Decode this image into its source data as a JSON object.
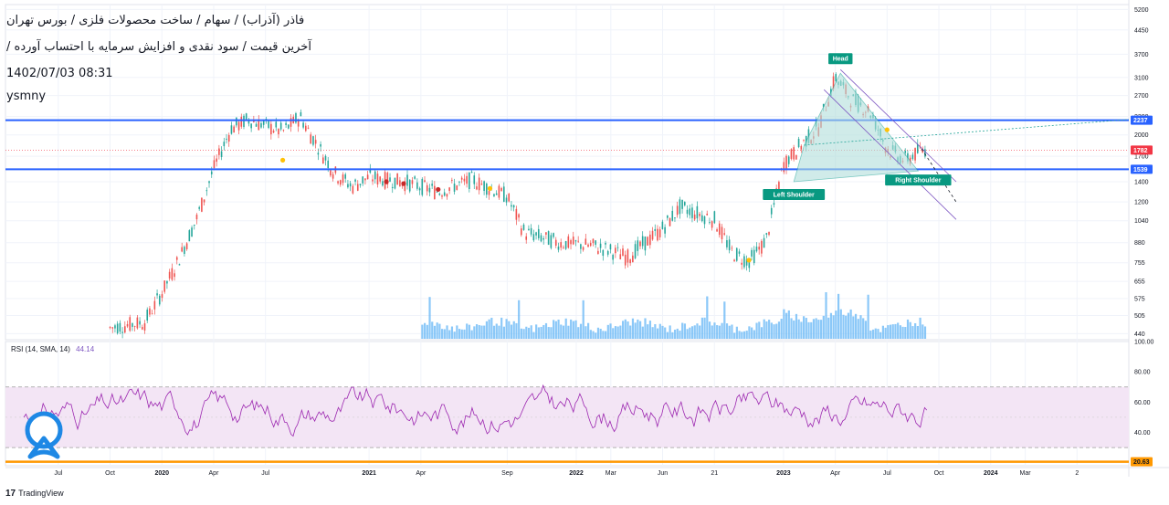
{
  "header": {
    "line1": "فاذر (آذراب) / سهام / ساخت محصولات فلزی / بورس تهران",
    "line2": "آخرین قیمت / سود نقدی و افزایش سرمایه با احتساب آورده /",
    "datetime": "1402/07/03 08:31",
    "user": "ysmny"
  },
  "branding": {
    "logo_text": "17",
    "name": "TradingView"
  },
  "colors": {
    "up": "#26a69a",
    "down": "#ef5350",
    "blue_line": "#2962ff",
    "pattern_fill": "#b2dfdb",
    "pattern_label_bg": "#089981",
    "rsi_line": "#9c27b0",
    "rsi_band": "#f3e5f5",
    "rsi_support": "#ff9800",
    "volume": "#64b5f6",
    "price_label": "#f23645",
    "level_label": "#2962ff"
  },
  "chart_data": {
    "type": "candlestick",
    "title": "",
    "price_axis": {
      "scale": "log",
      "ticks": [
        "5200",
        "4450",
        "3700",
        "3100",
        "2700",
        "2300",
        "2000",
        "1700",
        "1400",
        "1200",
        "1040",
        "880",
        "755",
        "655",
        "575",
        "505",
        "440"
      ],
      "last_price": "1782",
      "levels": [
        {
          "value": "2237",
          "label": "2237"
        },
        {
          "value": "1539",
          "label": "1539"
        }
      ]
    },
    "time_axis": {
      "ticks": [
        "Jul",
        "Oct",
        "2020",
        "Apr",
        "Jul",
        "2021",
        "Apr",
        "Sep",
        "2022",
        "Mar",
        "Jun",
        "21",
        "2023",
        "Apr",
        "Jul",
        "Oct",
        "2024",
        "Mar",
        "2"
      ]
    },
    "series_approx_close": [
      {
        "t": "2019-10",
        "v": 460
      },
      {
        "t": "2019-12",
        "v": 480
      },
      {
        "t": "2020-01",
        "v": 600
      },
      {
        "t": "2020-02",
        "v": 780
      },
      {
        "t": "2020-03",
        "v": 1050
      },
      {
        "t": "2020-04",
        "v": 1550
      },
      {
        "t": "2020-05",
        "v": 2100
      },
      {
        "t": "2020-06",
        "v": 2250
      },
      {
        "t": "2020-07",
        "v": 2150
      },
      {
        "t": "2020-08",
        "v": 2050
      },
      {
        "t": "2020-09",
        "v": 2300
      },
      {
        "t": "2020-10",
        "v": 1850
      },
      {
        "t": "2020-11",
        "v": 1500
      },
      {
        "t": "2020-12",
        "v": 1350
      },
      {
        "t": "2021-01",
        "v": 1450
      },
      {
        "t": "2021-03",
        "v": 1400
      },
      {
        "t": "2021-05",
        "v": 1300
      },
      {
        "t": "2021-07",
        "v": 1420
      },
      {
        "t": "2021-09",
        "v": 1250
      },
      {
        "t": "2021-10",
        "v": 950
      },
      {
        "t": "2021-12",
        "v": 880
      },
      {
        "t": "2022-02",
        "v": 860
      },
      {
        "t": "2022-04",
        "v": 790
      },
      {
        "t": "2022-06",
        "v": 980
      },
      {
        "t": "2022-07",
        "v": 1150
      },
      {
        "t": "2022-09",
        "v": 1050
      },
      {
        "t": "2022-10",
        "v": 820
      },
      {
        "t": "2022-11",
        "v": 760
      },
      {
        "t": "2022-12",
        "v": 900
      },
      {
        "t": "2023-01",
        "v": 1600
      },
      {
        "t": "2023-02",
        "v": 1850
      },
      {
        "t": "2023-03",
        "v": 2100
      },
      {
        "t": "2023-04",
        "v": 3100
      },
      {
        "t": "2023-05",
        "v": 2600
      },
      {
        "t": "2023-06",
        "v": 2400
      },
      {
        "t": "2023-07",
        "v": 1800
      },
      {
        "t": "2023-08",
        "v": 1650
      },
      {
        "t": "2023-09",
        "v": 1782
      }
    ],
    "pattern": {
      "name": "Head and Shoulders",
      "labels": [
        "Left Shoulder",
        "Head",
        "Right Shoulder"
      ]
    },
    "indicator": {
      "name": "RSI (14, SMA, 14)",
      "value": "44.14",
      "ticks": [
        "100.00",
        "80.00",
        "60.00",
        "40.00",
        "20.63"
      ],
      "upper_band": 70,
      "lower_band": 30
    },
    "grid": true
  }
}
